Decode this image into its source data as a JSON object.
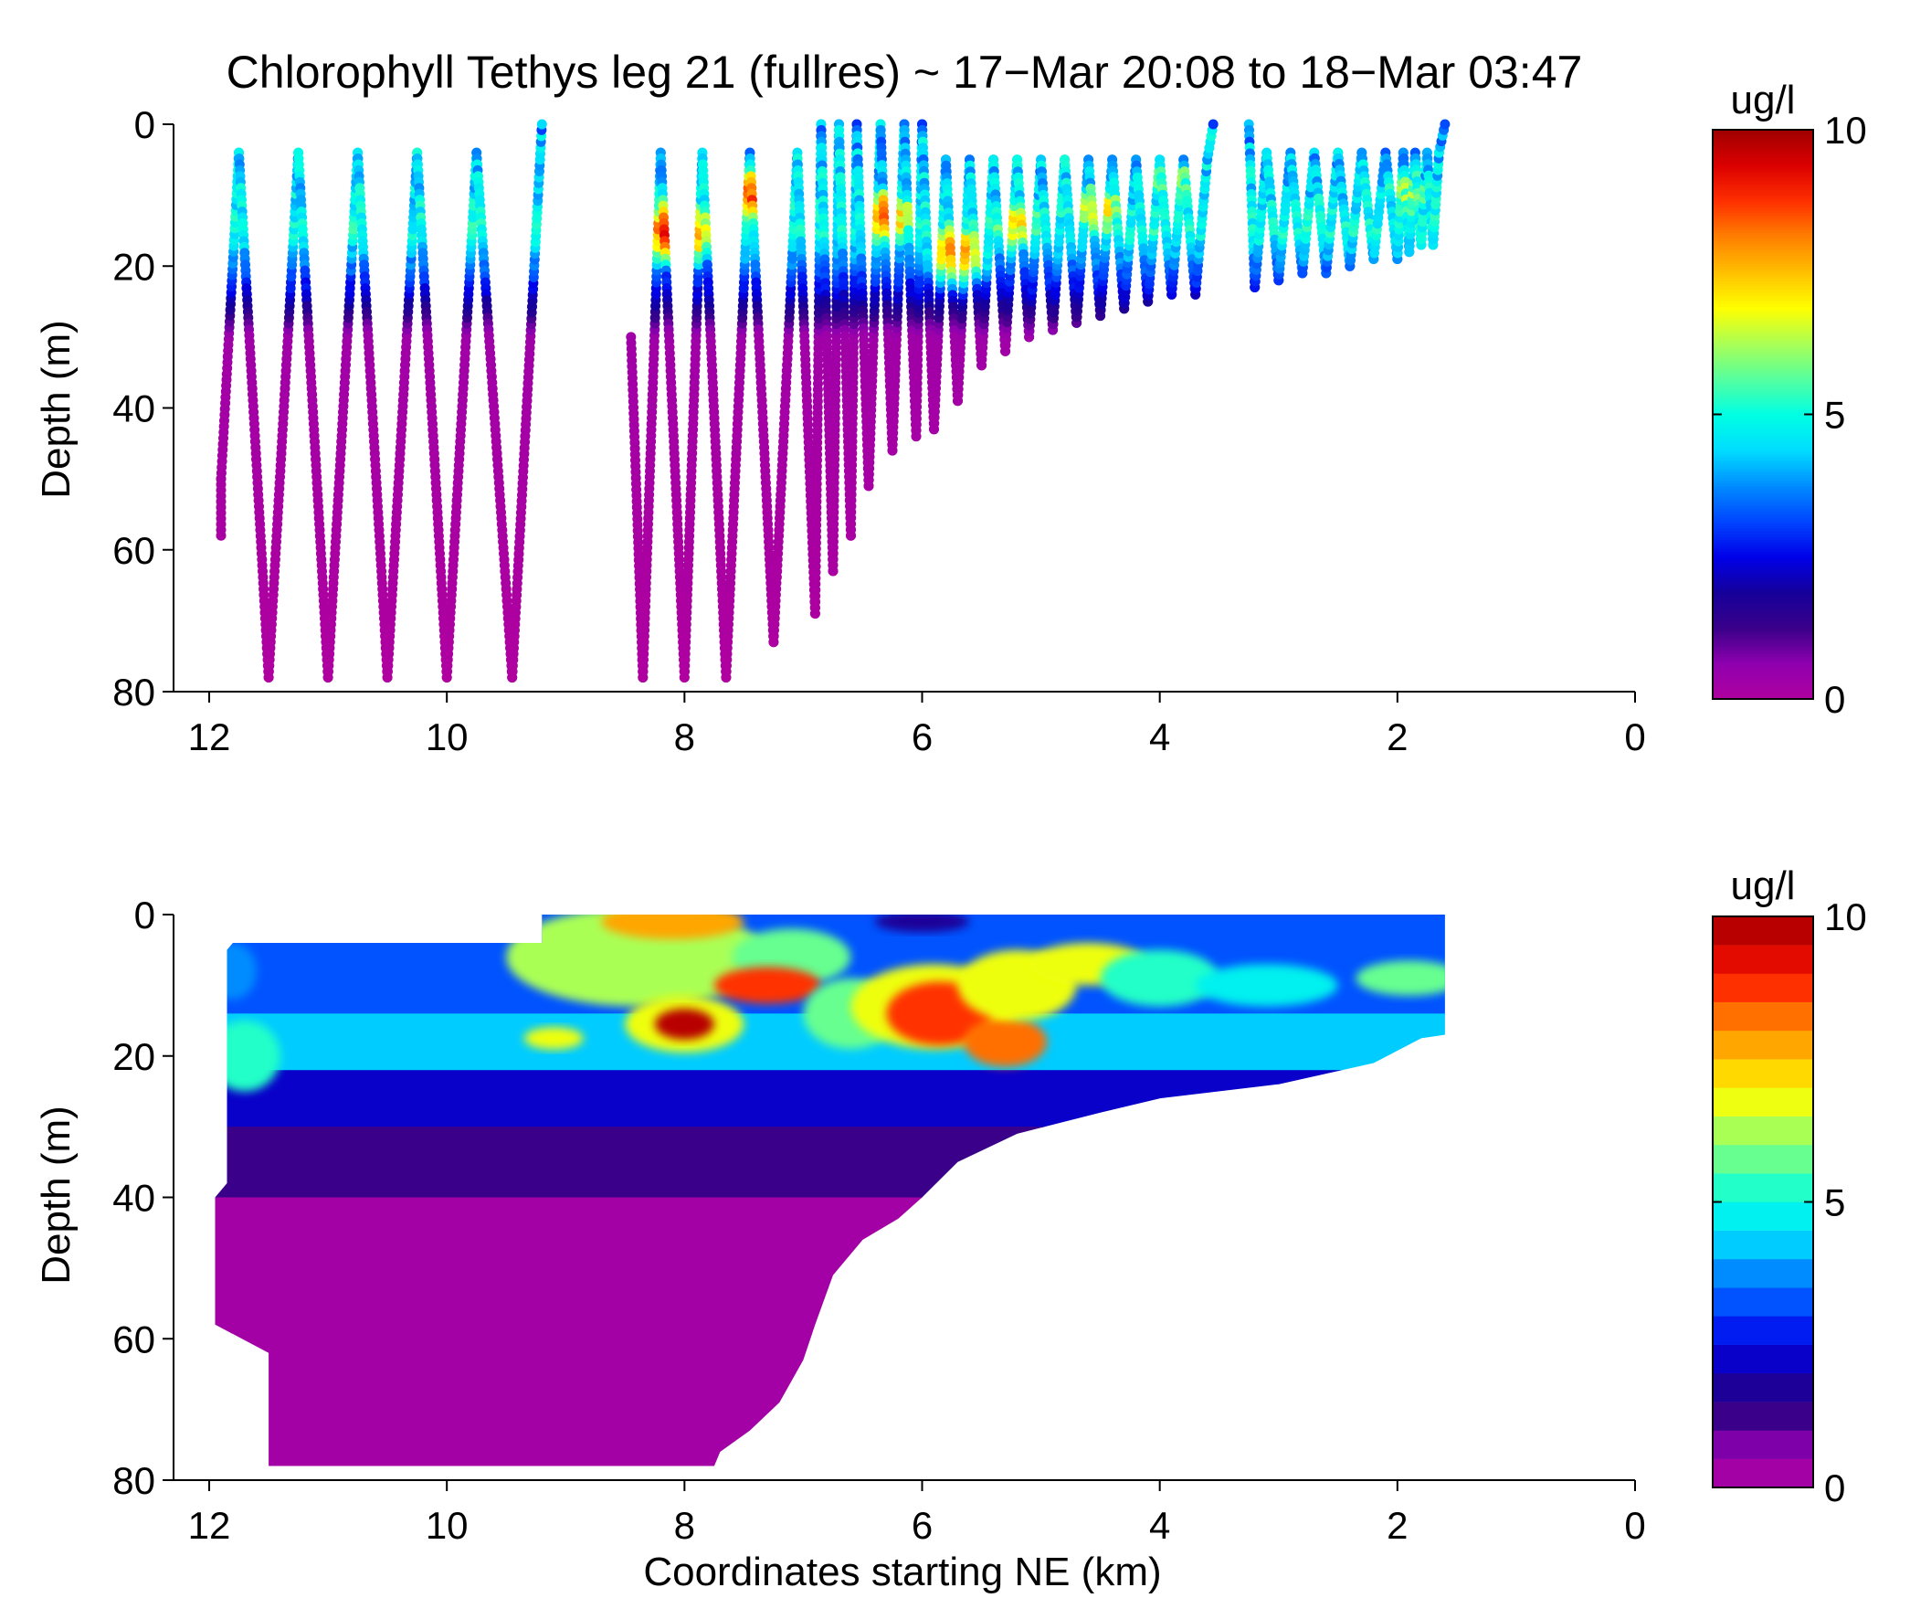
{
  "title": "Chlorophyll Tethys leg 21 (fullres) ~ 17−Mar 20:08 to 18−Mar 03:47",
  "colors": {
    "jet_colormap": [
      "#B0009F",
      "#8F00AF",
      "#3A008A",
      "#16009A",
      "#0000E8",
      "#0045FF",
      "#008CFF",
      "#00DCFF",
      "#00FFE4",
      "#55FF9F",
      "#AAFF55",
      "#FFFF00",
      "#FFC000",
      "#FF8000",
      "#FF3000",
      "#DC0000",
      "#A00000"
    ]
  },
  "chart_data": [
    {
      "type": "scatter",
      "name": "panel-top-fullres-scatter",
      "ylabel": "Depth (m)",
      "xlabel": "",
      "xlim": [
        12.3,
        0
      ],
      "ylim": [
        0,
        80
      ],
      "y_inverted": true,
      "xticks": [
        "12",
        "10",
        "8",
        "6",
        "4",
        "2",
        "0"
      ],
      "yticks": [
        "0",
        "20",
        "40",
        "60",
        "80"
      ],
      "color_variable": "chlorophyll (ug/l)",
      "colorbar": {
        "label": "ug/l",
        "min": 0,
        "max": 10,
        "ticks": [
          "0",
          "5",
          "10"
        ],
        "continuous": true
      },
      "profiles": [
        {
          "x": [
            11.9,
            11.9,
            11.75,
            11.5,
            11.25,
            11.0,
            10.75,
            10.5,
            10.25,
            10.0,
            9.75,
            9.45,
            9.2
          ],
          "y": [
            58,
            50,
            4,
            78,
            4,
            78,
            4,
            78,
            4,
            78,
            4,
            78,
            0
          ]
        },
        {
          "x": [
            8.45,
            8.35,
            8.2,
            8.0,
            7.85,
            7.65,
            7.45,
            7.25,
            7.05,
            6.9,
            6.85,
            6.75,
            6.7,
            6.6,
            6.55,
            6.45,
            6.35,
            6.25,
            6.15,
            6.05,
            6.0,
            5.9,
            5.8,
            5.7,
            5.6,
            5.5,
            5.4,
            5.3,
            5.2,
            5.1,
            5.0,
            4.9,
            4.8,
            4.7,
            4.6,
            4.5,
            4.4,
            4.3,
            4.2,
            4.1,
            4.0,
            3.9,
            3.8,
            3.7,
            3.6,
            3.55
          ],
          "y": [
            30,
            78,
            4,
            78,
            4,
            78,
            4,
            73,
            4,
            69,
            0,
            63,
            0,
            58,
            0,
            51,
            0,
            46,
            0,
            44,
            0,
            43,
            5,
            39,
            5,
            34,
            5,
            32,
            5,
            30,
            5,
            29,
            5,
            28,
            5,
            27,
            5,
            26,
            5,
            25,
            5,
            24,
            5,
            24,
            5,
            0
          ]
        },
        {
          "x": [
            3.25,
            3.2,
            3.1,
            3.0,
            2.9,
            2.8,
            2.7,
            2.6,
            2.5,
            2.4,
            2.3,
            2.2,
            2.1,
            2.0,
            1.95,
            1.9,
            1.85,
            1.8,
            1.75,
            1.7,
            1.65,
            1.6
          ],
          "y": [
            0,
            23,
            4,
            22,
            4,
            21,
            4,
            21,
            4,
            20,
            4,
            19,
            4,
            19,
            4,
            18,
            4,
            17,
            4,
            17,
            4,
            0
          ]
        }
      ],
      "depth_color_profile": [
        {
          "depth": 0,
          "value": 4.0
        },
        {
          "depth": 10,
          "value": 4.5
        },
        {
          "depth": 15,
          "value": 5.0
        },
        {
          "depth": 20,
          "value": 3.5
        },
        {
          "depth": 25,
          "value": 2.0
        },
        {
          "depth": 30,
          "value": 0.3
        },
        {
          "depth": 80,
          "value": 0.0
        }
      ],
      "hotspots": [
        {
          "x": 8.05,
          "y": 15,
          "value": 10
        },
        {
          "x": 7.35,
          "y": 10,
          "value": 9
        },
        {
          "x": 6.3,
          "y": 13,
          "value": 8
        },
        {
          "x": 5.7,
          "y": 18,
          "value": 8
        },
        {
          "x": 5.2,
          "y": 14,
          "value": 7
        },
        {
          "x": 4.5,
          "y": 12,
          "value": 7
        },
        {
          "x": 3.9,
          "y": 8,
          "value": 6
        },
        {
          "x": 1.9,
          "y": 10,
          "value": 6
        }
      ]
    },
    {
      "type": "heatmap",
      "name": "panel-bottom-contour",
      "ylabel": "Depth (m)",
      "xlabel": "Coordinates starting NE (km)",
      "xlim": [
        12.3,
        0
      ],
      "ylim": [
        0,
        80
      ],
      "y_inverted": true,
      "xticks": [
        "12",
        "10",
        "8",
        "6",
        "4",
        "2",
        "0"
      ],
      "yticks": [
        "0",
        "20",
        "40",
        "60",
        "80"
      ],
      "color_variable": "chlorophyll (ug/l)",
      "colorbar": {
        "label": "ug/l",
        "min": 0,
        "max": 10,
        "ticks": [
          "0",
          "5",
          "10"
        ],
        "levels": 20
      },
      "data_extent": {
        "top_boundary": [
          [
            11.85,
            5
          ],
          [
            11.8,
            4
          ],
          [
            9.2,
            4
          ],
          [
            9.2,
            0
          ],
          [
            1.6,
            0
          ]
        ],
        "bottom_boundary": [
          [
            1.6,
            0
          ],
          [
            1.6,
            17
          ],
          [
            1.8,
            17.5
          ],
          [
            2.2,
            21
          ],
          [
            3.0,
            24
          ],
          [
            4.0,
            26
          ],
          [
            4.5,
            28
          ],
          [
            5.2,
            31
          ],
          [
            5.7,
            35
          ],
          [
            6.0,
            40
          ],
          [
            6.2,
            43
          ],
          [
            6.5,
            46
          ],
          [
            6.75,
            51
          ],
          [
            6.9,
            58
          ],
          [
            7.0,
            63
          ],
          [
            7.2,
            69
          ],
          [
            7.45,
            73
          ],
          [
            7.7,
            76
          ],
          [
            7.75,
            78
          ],
          [
            11.5,
            78
          ],
          [
            11.5,
            62
          ],
          [
            11.95,
            58
          ],
          [
            11.95,
            40
          ],
          [
            11.85,
            38
          ],
          [
            11.85,
            5
          ]
        ]
      },
      "layers": [
        {
          "from_depth": 0,
          "to_depth": 14,
          "value": 3.4
        },
        {
          "from_depth": 14,
          "to_depth": 22,
          "value": 4.4
        },
        {
          "from_depth": 22,
          "to_depth": 30,
          "value": 2.1
        },
        {
          "from_depth": 30,
          "to_depth": 40,
          "value": 1.1
        },
        {
          "from_depth": 40,
          "to_depth": 80,
          "value": 0.2
        }
      ],
      "features": [
        {
          "x": 8.4,
          "y": 6,
          "rx": 1.1,
          "ry": 7,
          "value": 6.2
        },
        {
          "x": 8.1,
          "y": 1,
          "rx": 0.6,
          "ry": 2.5,
          "value": 7.5
        },
        {
          "x": 7.1,
          "y": 6,
          "rx": 0.5,
          "ry": 4,
          "value": 5.5
        },
        {
          "x": 8.0,
          "y": 15.5,
          "rx": 0.5,
          "ry": 4,
          "value": 6.5
        },
        {
          "x": 8.0,
          "y": 15.5,
          "rx": 0.25,
          "ry": 2.2,
          "value": 10
        },
        {
          "x": 7.3,
          "y": 10,
          "rx": 0.45,
          "ry": 2.6,
          "value": 8.8
        },
        {
          "x": 9.1,
          "y": 17.5,
          "rx": 0.25,
          "ry": 1.6,
          "value": 6.5
        },
        {
          "x": 6.6,
          "y": 14,
          "rx": 0.4,
          "ry": 5,
          "value": 5.5
        },
        {
          "x": 5.9,
          "y": 13,
          "rx": 0.7,
          "ry": 6,
          "value": 6.8
        },
        {
          "x": 5.85,
          "y": 14,
          "rx": 0.45,
          "ry": 4.5,
          "value": 8.8
        },
        {
          "x": 5.3,
          "y": 18,
          "rx": 0.35,
          "ry": 3.5,
          "value": 8.2
        },
        {
          "x": 5.2,
          "y": 10,
          "rx": 0.5,
          "ry": 5,
          "value": 6.8
        },
        {
          "x": 4.6,
          "y": 7,
          "rx": 0.5,
          "ry": 3,
          "value": 6.5
        },
        {
          "x": 4.0,
          "y": 9,
          "rx": 0.5,
          "ry": 4,
          "value": 5.2
        },
        {
          "x": 3.1,
          "y": 10,
          "rx": 0.6,
          "ry": 3,
          "value": 4.6
        },
        {
          "x": 1.9,
          "y": 9,
          "rx": 0.45,
          "ry": 2.5,
          "value": 5.6
        },
        {
          "x": 11.7,
          "y": 20,
          "rx": 0.3,
          "ry": 5,
          "value": 5.2
        },
        {
          "x": 11.8,
          "y": 8,
          "rx": 0.2,
          "ry": 4,
          "value": 3.6
        },
        {
          "x": 6.0,
          "y": 1,
          "rx": 0.4,
          "ry": 1.5,
          "value": 1.8
        }
      ]
    }
  ]
}
